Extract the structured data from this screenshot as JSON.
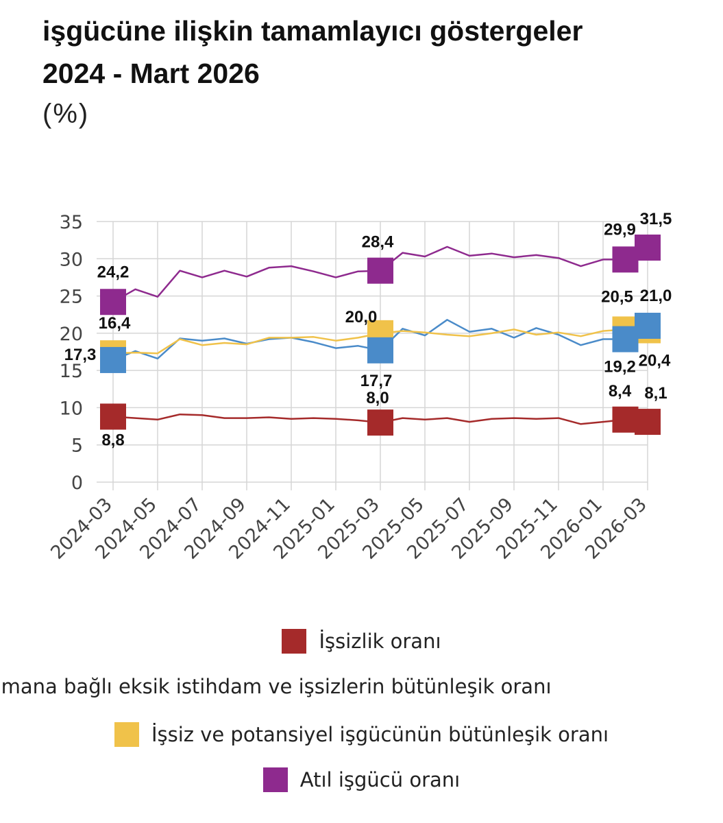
{
  "title": {
    "line1": "işgücüne ilişkin tamamlayıcı göstergeler",
    "line2": "2024 - Mart 2026",
    "subtitle": "(%)"
  },
  "chart_data": {
    "type": "line",
    "x": [
      "2024-03",
      "2024-04",
      "2024-05",
      "2024-06",
      "2024-07",
      "2024-08",
      "2024-09",
      "2024-10",
      "2024-11",
      "2024-12",
      "2025-01",
      "2025-02",
      "2025-03",
      "2025-04",
      "2025-05",
      "2025-06",
      "2025-07",
      "2025-08",
      "2025-09",
      "2025-10",
      "2025-11",
      "2025-12",
      "2026-01",
      "2026-02",
      "2026-03"
    ],
    "xtick_labels": [
      "2024-03",
      "2024-05",
      "2024-07",
      "2024-09",
      "2024-11",
      "2025-01",
      "2025-03",
      "2025-05",
      "2025-07",
      "2025-09",
      "2025-11",
      "2026-01",
      "2026-03"
    ],
    "ylim": [
      0,
      35
    ],
    "yticks": [
      0,
      5,
      10,
      15,
      20,
      25,
      30,
      35
    ],
    "grid": true,
    "legend_position": "bottom",
    "series": [
      {
        "name": "İşsizlik oranı",
        "color": "#a52a2a",
        "values": [
          8.8,
          8.6,
          8.4,
          9.1,
          9.0,
          8.6,
          8.6,
          8.7,
          8.5,
          8.6,
          8.5,
          8.3,
          8.0,
          8.6,
          8.4,
          8.6,
          8.1,
          8.5,
          8.6,
          8.5,
          8.6,
          7.8,
          8.1,
          8.4,
          8.1
        ],
        "labeled_points": [
          {
            "x": "2024-03",
            "label": "8,8"
          },
          {
            "x": "2025-03",
            "label": "8,0"
          },
          {
            "x": "2026-02",
            "label": "8,4"
          },
          {
            "x": "2026-03",
            "label": "8,1"
          }
        ]
      },
      {
        "name": "Zamana bağlı eksik istihdam ve işsizlerin bütünleşik oranı",
        "color": "#4a8bc9",
        "values": [
          16.4,
          17.6,
          16.6,
          19.3,
          19.0,
          19.3,
          18.6,
          19.2,
          19.4,
          18.8,
          18.0,
          18.3,
          17.7,
          20.6,
          19.7,
          21.8,
          20.2,
          20.6,
          19.4,
          20.7,
          19.8,
          18.4,
          19.2,
          19.2,
          21.0
        ],
        "labeled_points": [
          {
            "x": "2024-03",
            "label": "16,4"
          },
          {
            "x": "2025-03",
            "label": "17,7"
          },
          {
            "x": "2026-02",
            "label": "19,2"
          },
          {
            "x": "2026-03",
            "label": "21,0"
          }
        ]
      },
      {
        "name": "İşsiz ve potansiyel işgücünün bütünleşik oranı",
        "color": "#f0c24a",
        "values": [
          17.3,
          17.4,
          17.3,
          19.2,
          18.4,
          18.7,
          18.5,
          19.4,
          19.4,
          19.5,
          19.0,
          19.4,
          20.0,
          20.3,
          20.1,
          19.8,
          19.6,
          20.0,
          20.5,
          19.8,
          20.1,
          19.6,
          20.3,
          20.5,
          20.4
        ],
        "labeled_points": [
          {
            "x": "2024-03",
            "label": "17,3"
          },
          {
            "x": "2025-03",
            "label": "20,0"
          },
          {
            "x": "2026-02",
            "label": "20,5"
          },
          {
            "x": "2026-03",
            "label": "20,4"
          }
        ]
      },
      {
        "name": "Atıl işgücü oranı",
        "color": "#8e2a8e",
        "values": [
          24.2,
          25.9,
          24.9,
          28.4,
          27.5,
          28.4,
          27.6,
          28.8,
          29.0,
          28.3,
          27.5,
          28.3,
          28.4,
          30.8,
          30.3,
          31.6,
          30.4,
          30.7,
          30.2,
          30.5,
          30.1,
          29.0,
          29.9,
          29.9,
          31.5
        ],
        "labeled_points": [
          {
            "x": "2024-03",
            "label": "24,2"
          },
          {
            "x": "2025-03",
            "label": "28,4"
          },
          {
            "x": "2026-02",
            "label": "29,9"
          },
          {
            "x": "2026-03",
            "label": "31,5"
          }
        ]
      }
    ]
  },
  "legend": {
    "items": [
      {
        "text": "İşsizlik oranı",
        "color": "#a52a2a"
      },
      {
        "text": "Zamana bağlı eksik istihdam ve işsizlerin bütünleşik oranı",
        "color": "#4a8bc9"
      },
      {
        "text": "İşsiz ve potansiyel işgücünün bütünleşik oranı",
        "color": "#f0c24a"
      },
      {
        "text": "Atıl işgücü oranı",
        "color": "#8e2a8e"
      }
    ]
  }
}
